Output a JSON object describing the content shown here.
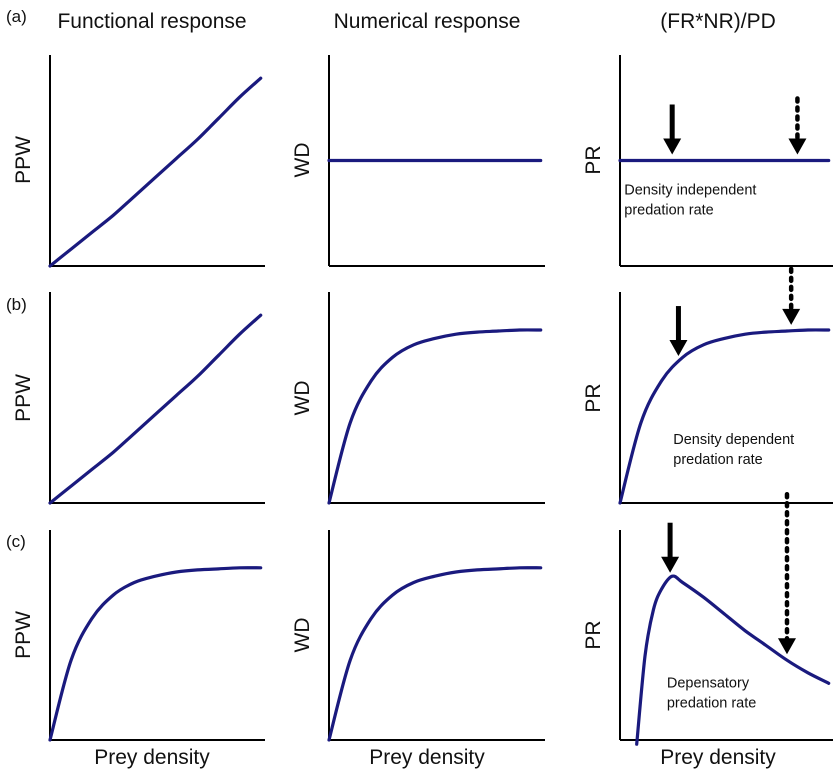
{
  "column_titles": [
    "Functional response",
    "Numerical response",
    "(FR*NR)/PD"
  ],
  "row_labels": [
    "(a)",
    "(b)",
    "(c)"
  ],
  "x_label": "Prey density",
  "colors": {
    "curve": "#1a1a7e",
    "axis": "#000000"
  },
  "chart_data": [
    {
      "id": "a1",
      "type": "line",
      "title": "Functional response",
      "row": "(a)",
      "xlabel": "",
      "ylabel": "PPW",
      "x": [
        0,
        0.1,
        0.2,
        0.3,
        0.4,
        0.5,
        0.6,
        0.7,
        0.8,
        0.9,
        1.0
      ],
      "y": [
        0,
        0.08,
        0.16,
        0.24,
        0.33,
        0.42,
        0.51,
        0.6,
        0.7,
        0.8,
        0.89
      ]
    },
    {
      "id": "a2",
      "type": "line",
      "title": "Numerical response",
      "row": "(a)",
      "xlabel": "",
      "ylabel": "WD",
      "x": [
        0,
        1.0
      ],
      "y": [
        0.5,
        0.5
      ]
    },
    {
      "id": "a3",
      "type": "line",
      "title": "(FR*NR)/PD",
      "row": "(a)",
      "xlabel": "",
      "ylabel": "PR",
      "x": [
        0,
        1.0
      ],
      "y": [
        0.5,
        0.5
      ],
      "arrows": [
        {
          "x": 0.25,
          "style": "solid"
        },
        {
          "x": 0.85,
          "style": "dotted"
        }
      ],
      "annotation": [
        "Density independent",
        "predation rate"
      ]
    },
    {
      "id": "b1",
      "type": "line",
      "title": "Functional response",
      "row": "(b)",
      "xlabel": "",
      "ylabel": "PPW",
      "x": [
        0,
        0.1,
        0.2,
        0.3,
        0.4,
        0.5,
        0.6,
        0.7,
        0.8,
        0.9,
        1.0
      ],
      "y": [
        0,
        0.08,
        0.16,
        0.24,
        0.33,
        0.42,
        0.51,
        0.6,
        0.7,
        0.8,
        0.89
      ]
    },
    {
      "id": "b2",
      "type": "line",
      "title": "Numerical response",
      "row": "(b)",
      "xlabel": "",
      "ylabel": "WD",
      "x": [
        0,
        0.1,
        0.2,
        0.3,
        0.4,
        0.5,
        0.6,
        0.7,
        0.8,
        0.9,
        1.0
      ],
      "y": [
        0,
        0.38,
        0.58,
        0.69,
        0.75,
        0.78,
        0.8,
        0.81,
        0.815,
        0.82,
        0.82
      ]
    },
    {
      "id": "b3",
      "type": "line",
      "title": "(FR*NR)/PD",
      "row": "(b)",
      "xlabel": "",
      "ylabel": "PR",
      "x": [
        0,
        0.1,
        0.2,
        0.3,
        0.4,
        0.5,
        0.6,
        0.7,
        0.8,
        0.9,
        1.0
      ],
      "y": [
        0,
        0.38,
        0.58,
        0.69,
        0.75,
        0.78,
        0.8,
        0.81,
        0.815,
        0.82,
        0.82
      ],
      "arrows": [
        {
          "x": 0.28,
          "style": "solid"
        },
        {
          "x": 0.82,
          "style": "dotted"
        }
      ],
      "annotation": [
        "Density dependent",
        "predation rate"
      ]
    },
    {
      "id": "c1",
      "type": "line",
      "title": "Functional response",
      "row": "(c)",
      "xlabel": "Prey density",
      "ylabel": "PPW",
      "x": [
        0,
        0.1,
        0.2,
        0.3,
        0.4,
        0.5,
        0.6,
        0.7,
        0.8,
        0.9,
        1.0
      ],
      "y": [
        0,
        0.38,
        0.58,
        0.69,
        0.75,
        0.78,
        0.8,
        0.81,
        0.815,
        0.82,
        0.82
      ]
    },
    {
      "id": "c2",
      "type": "line",
      "title": "Numerical response",
      "row": "(c)",
      "xlabel": "Prey density",
      "ylabel": "WD",
      "x": [
        0,
        0.1,
        0.2,
        0.3,
        0.4,
        0.5,
        0.6,
        0.7,
        0.8,
        0.9,
        1.0
      ],
      "y": [
        0,
        0.38,
        0.58,
        0.69,
        0.75,
        0.78,
        0.8,
        0.81,
        0.815,
        0.82,
        0.82
      ]
    },
    {
      "id": "c3",
      "type": "line",
      "title": "(FR*NR)/PD",
      "row": "(c)",
      "xlabel": "Prey density",
      "ylabel": "PR",
      "x": [
        0.08,
        0.12,
        0.16,
        0.2,
        0.25,
        0.3,
        0.4,
        0.5,
        0.6,
        0.7,
        0.8,
        0.9,
        1.0
      ],
      "y": [
        -0.02,
        0.4,
        0.62,
        0.72,
        0.78,
        0.75,
        0.68,
        0.6,
        0.52,
        0.45,
        0.38,
        0.32,
        0.27
      ],
      "arrows": [
        {
          "x": 0.24,
          "style": "solid"
        },
        {
          "x": 0.8,
          "style": "dotted"
        }
      ],
      "annotation": [
        "Depensatory",
        "predation rate"
      ]
    }
  ]
}
